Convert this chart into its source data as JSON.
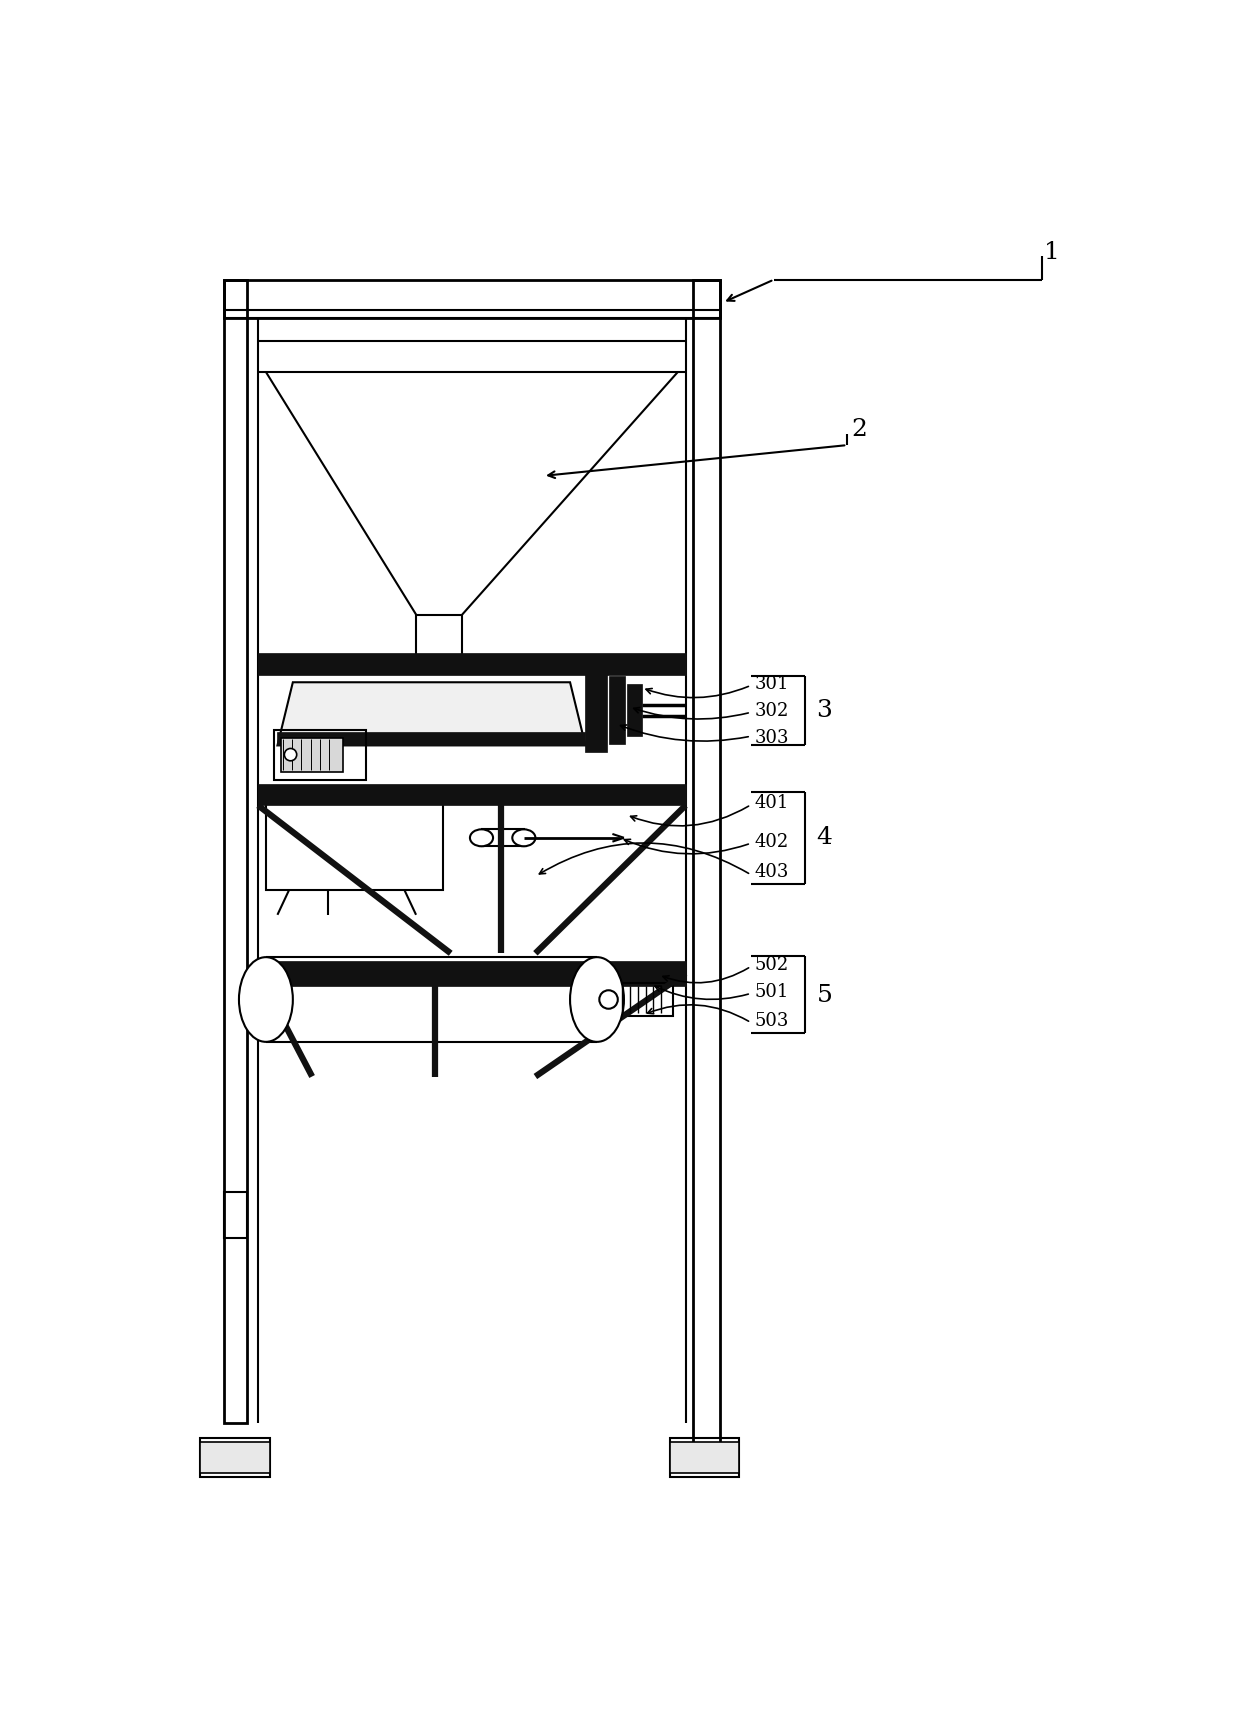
{
  "bg_color": "#ffffff",
  "lc": "#000000",
  "dark": "#111111",
  "fig_width": 12.4,
  "fig_height": 17.2,
  "dpi": 100
}
